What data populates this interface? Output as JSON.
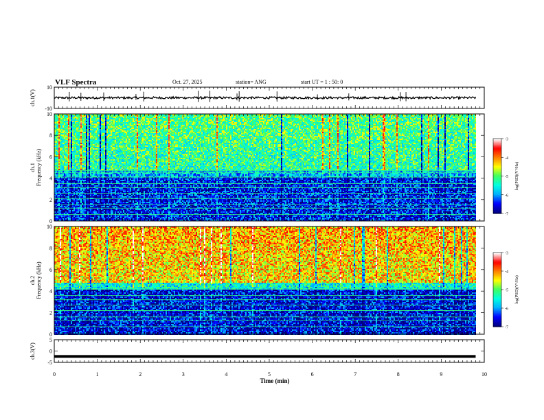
{
  "header": {
    "title": "VLF Spectra",
    "date": "Oct. 27, 2025",
    "station": "station= ANG",
    "start_ut": "start  UT =   1 : 50: 0"
  },
  "colorbar": {
    "label": "log(PSD)(V²/Hz)",
    "ticks": [
      "-3",
      "-4",
      "-5",
      "-6",
      "-7"
    ],
    "min": -7,
    "max": -3,
    "colors": [
      "#000080",
      "#0000ff",
      "#00b0ff",
      "#00ffe0",
      "#40ff60",
      "#ffff00",
      "#ff8000",
      "#ff0000",
      "#ffffff"
    ]
  },
  "chart_data": [
    {
      "type": "line",
      "panel": "waveform ch.1",
      "ylabel": "ch.1(V)",
      "ylim": [
        -10,
        10
      ],
      "yticks": [
        "10",
        "-10"
      ],
      "x_range": [
        0,
        9.8
      ],
      "baseline": 0,
      "noise_amplitude": 1,
      "spikes_x": [
        0.35,
        0.62,
        1.15,
        1.9,
        2.08,
        3.35,
        3.62,
        4.25,
        4.3,
        5.18,
        6.12,
        6.85,
        8.05,
        8.18
      ]
    },
    {
      "type": "heatmap",
      "panel": "spectrogram ch.1",
      "ylabel": "ch.1 Frequency (kHz)",
      "ylim": [
        0,
        10
      ],
      "yticks": [
        "0",
        "2",
        "4",
        "6",
        "8",
        "10"
      ],
      "x_range": [
        0,
        9.8
      ],
      "upper_band_kHz": [
        4.8,
        10
      ],
      "upper_band_log_psd": -5.3,
      "lower_band_log_psd": -6.5,
      "horizontal_lines_kHz": [
        0.6,
        1.2,
        1.5,
        2.1,
        2.6,
        3.1,
        3.5,
        4.1,
        4.5,
        4.7
      ]
    },
    {
      "type": "heatmap",
      "panel": "spectrogram ch.2",
      "ylabel": "ch.2 Frequency (kHz)",
      "ylim": [
        0,
        10
      ],
      "yticks": [
        "0",
        "2",
        "4",
        "6",
        "8",
        "10"
      ],
      "x_range": [
        0,
        9.8
      ],
      "upper_band_kHz": [
        4.8,
        10
      ],
      "upper_band_log_psd": -4.4,
      "lower_band_log_psd": -6.6,
      "horizontal_lines_kHz": [
        0.7,
        1.3,
        1.6,
        2.2,
        2.7,
        3.2,
        3.6,
        4.2
      ]
    },
    {
      "type": "line",
      "panel": "waveform ch.3",
      "ylabel": "ch.3(V)",
      "ylim": [
        -5,
        5
      ],
      "yticks": [
        "5",
        "0",
        "-5"
      ],
      "x_range": [
        0,
        9.8
      ],
      "baseline": -2.4,
      "noise_amplitude": 0
    }
  ],
  "x_axis": {
    "label": "Time (min)",
    "range": [
      0,
      10
    ],
    "ticks": [
      "0",
      "1",
      "2",
      "3",
      "4",
      "5",
      "6",
      "7",
      "8",
      "9",
      "10"
    ]
  }
}
